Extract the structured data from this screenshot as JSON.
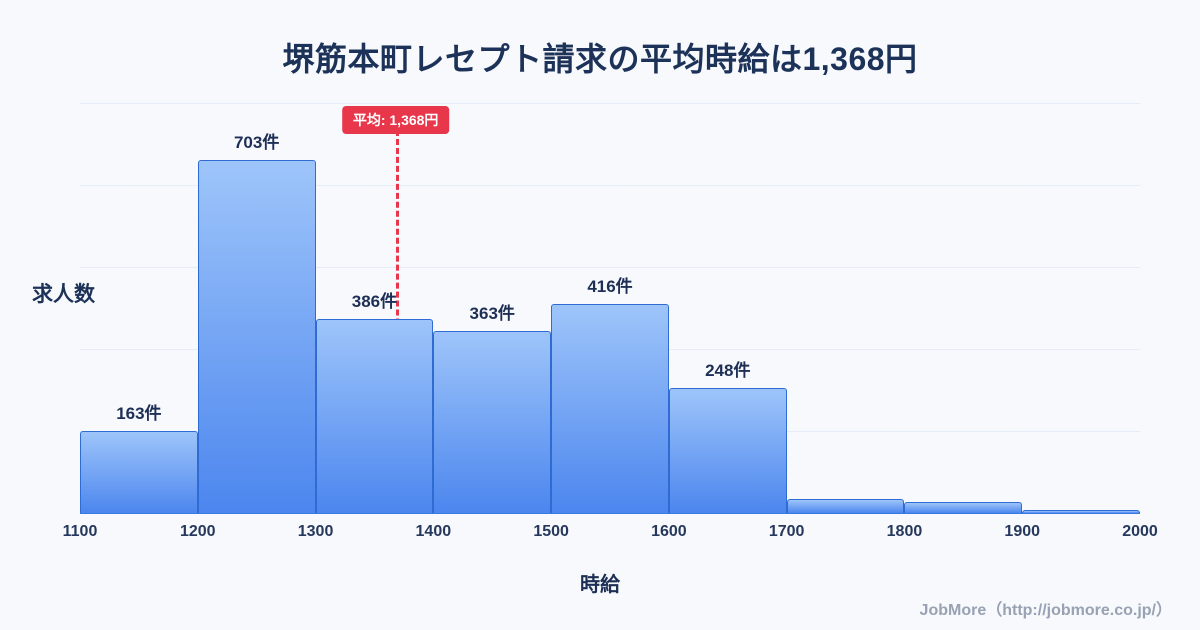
{
  "title": "堺筋本町レセプト請求の平均時給は1,368円",
  "footer": "JobMore（http://jobmore.co.jp/）",
  "chart_data": {
    "type": "bar",
    "title": "堺筋本町レセプト請求の平均時給は1,368円",
    "xlabel": "時給",
    "ylabel": "求人数",
    "x_ticks": [
      "1100",
      "1200",
      "1300",
      "1400",
      "1500",
      "1600",
      "1700",
      "1800",
      "1900",
      "2000"
    ],
    "x_range": [
      1100,
      2000
    ],
    "bin_width": 100,
    "values": [
      163,
      703,
      386,
      363,
      416,
      248,
      28,
      22,
      6
    ],
    "bar_labels": [
      "163件",
      "703件",
      "386件",
      "363件",
      "416件",
      "248件",
      "",
      "",
      ""
    ],
    "average": 1368,
    "average_label": "平均: 1,368円",
    "ylim": [
      0,
      760
    ],
    "grid": false,
    "legend": "none",
    "colors": {
      "bar_top": "#9ec5fa",
      "bar_bottom": "#4c86ee",
      "bar_border": "#2e6cd4",
      "axis": "#3a77e0",
      "average_line": "#e8364a",
      "title_text": "#1c3258",
      "background": "#f7f9fc"
    }
  }
}
